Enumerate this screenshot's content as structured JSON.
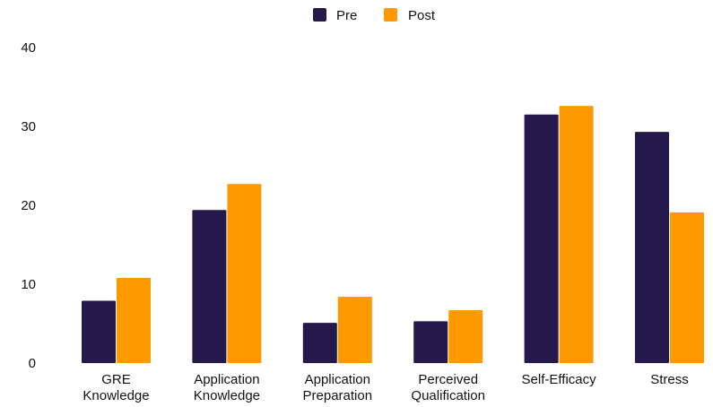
{
  "chart_data": {
    "type": "bar",
    "categories": [
      [
        "GRE",
        "Knowledge"
      ],
      [
        "Application",
        "Knowledge"
      ],
      [
        "Application",
        "Preparation"
      ],
      [
        "Perceived",
        "Qualification"
      ],
      [
        "Self-Efficacy"
      ],
      [
        "Stress"
      ]
    ],
    "series": [
      {
        "name": "Pre",
        "color": "#25184a",
        "values": [
          7.9,
          19.4,
          5.1,
          5.3,
          31.5,
          29.3
        ]
      },
      {
        "name": "Post",
        "color": "#ff9900",
        "values": [
          10.8,
          22.7,
          8.4,
          6.7,
          32.6,
          19.1
        ]
      }
    ],
    "y_ticks": [
      "0",
      "10",
      "20",
      "30",
      "40"
    ],
    "ylim": [
      0,
      40
    ],
    "grid": false,
    "legend_position": "top-center"
  }
}
